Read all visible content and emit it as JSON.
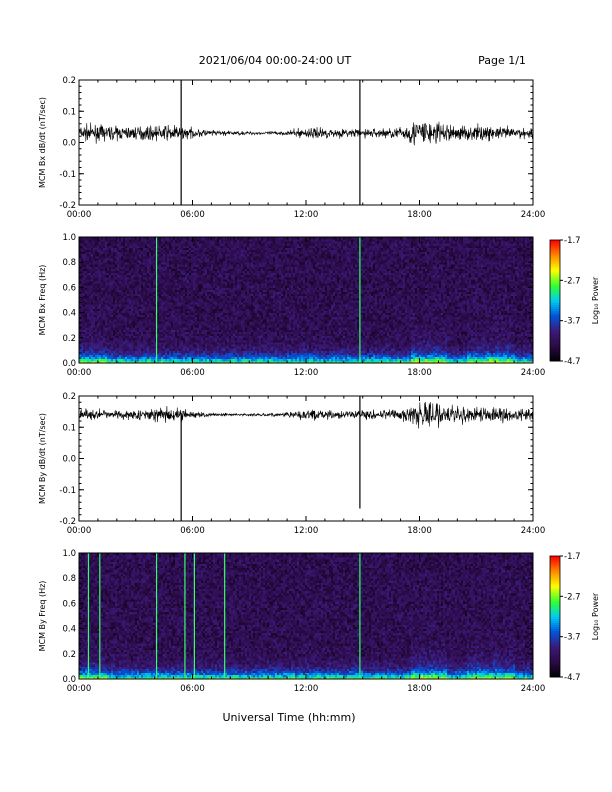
{
  "header": {
    "title": "2021/06/04  00:00-24:00 UT",
    "page": "Page 1/1"
  },
  "footer": {
    "xlabel": "Universal Time (hh:mm)"
  },
  "colorbar": {
    "ticks": [
      "-1.7",
      "-2.7",
      "-3.7",
      "-4.7"
    ],
    "label": "Log₁₀ Power"
  },
  "colors": {
    "trace": "#000000",
    "cmap": [
      "#000000",
      "#2a0a45",
      "#3c1a7a",
      "#0055dd",
      "#00ccee",
      "#33ff33",
      "#ffff00",
      "#ff8800",
      "#ff0000"
    ]
  },
  "chart_data": [
    {
      "type": "line",
      "ylabel": "MCM Bx dB/dt (nT/sec)",
      "xlim": [
        0,
        24
      ],
      "ylim": [
        -0.2,
        0.2
      ],
      "xticks": [
        "00:00",
        "06:00",
        "12:00",
        "18:00",
        "24:00"
      ],
      "yticks": [
        "0.2",
        "0.1",
        "0.0",
        "-0.1",
        "-0.2"
      ],
      "baseline": 0.03,
      "noise_envelope": {
        "x": [
          0,
          1,
          2,
          3,
          4,
          5,
          6,
          7,
          8,
          9,
          10,
          11,
          12,
          13,
          14,
          15,
          16,
          17,
          18,
          19,
          20,
          21,
          22,
          23,
          24
        ],
        "amp": [
          0.03,
          0.028,
          0.025,
          0.024,
          0.026,
          0.03,
          0.018,
          0.012,
          0.008,
          0.007,
          0.006,
          0.008,
          0.022,
          0.02,
          0.015,
          0.018,
          0.018,
          0.022,
          0.06,
          0.04,
          0.028,
          0.03,
          0.025,
          0.022,
          0.02
        ]
      },
      "spikes": [
        {
          "t": 5.4,
          "min": -0.2,
          "max": 0.2
        },
        {
          "t": 14.85,
          "min": -0.2,
          "max": 0.2
        }
      ]
    },
    {
      "type": "heatmap",
      "ylabel": "MCM Bx Freq (Hz)",
      "xlim": [
        0,
        24
      ],
      "ylim": [
        0,
        1.0
      ],
      "xticks": [
        "00:00",
        "06:00",
        "12:00",
        "18:00",
        "24:00"
      ],
      "yticks": [
        "1.0",
        "0.8",
        "0.6",
        "0.4",
        "0.2",
        "0.0"
      ],
      "zlim": [
        -4.7,
        -1.7
      ],
      "bright_columns": [
        4.1,
        14.85
      ]
    },
    {
      "type": "line",
      "ylabel": "MCM By dB/dt (nT/sec)",
      "xlim": [
        0,
        24
      ],
      "ylim": [
        -0.2,
        0.2
      ],
      "xticks": [
        "00:00",
        "06:00",
        "12:00",
        "18:00",
        "24:00"
      ],
      "yticks": [
        "0.2",
        "0.1",
        "0.0",
        "-0.1",
        "-0.2"
      ],
      "baseline": 0.14,
      "noise_envelope": {
        "x": [
          0,
          1,
          2,
          3,
          4,
          5,
          6,
          7,
          8,
          9,
          10,
          11,
          12,
          13,
          14,
          15,
          16,
          17,
          18,
          19,
          20,
          21,
          22,
          23,
          24
        ],
        "amp": [
          0.025,
          0.02,
          0.015,
          0.02,
          0.025,
          0.03,
          0.012,
          0.008,
          0.006,
          0.006,
          0.006,
          0.008,
          0.02,
          0.018,
          0.012,
          0.02,
          0.02,
          0.022,
          0.05,
          0.045,
          0.03,
          0.03,
          0.025,
          0.022,
          0.02
        ]
      },
      "spikes": [
        {
          "t": 5.4,
          "min": -0.2,
          "max": 0.14
        },
        {
          "t": 14.85,
          "min": -0.16,
          "max": 0.2
        }
      ]
    },
    {
      "type": "heatmap",
      "ylabel": "MCM By Freq (Hz)",
      "xlim": [
        0,
        24
      ],
      "ylim": [
        0,
        1.0
      ],
      "xticks": [
        "00:00",
        "06:00",
        "12:00",
        "18:00",
        "24:00"
      ],
      "yticks": [
        "1.0",
        "0.8",
        "0.6",
        "0.4",
        "0.2",
        "0.0"
      ],
      "zlim": [
        -4.7,
        -1.7
      ],
      "bright_columns": [
        0.5,
        1.1,
        4.1,
        5.6,
        6.1,
        7.7,
        14.85
      ]
    }
  ]
}
